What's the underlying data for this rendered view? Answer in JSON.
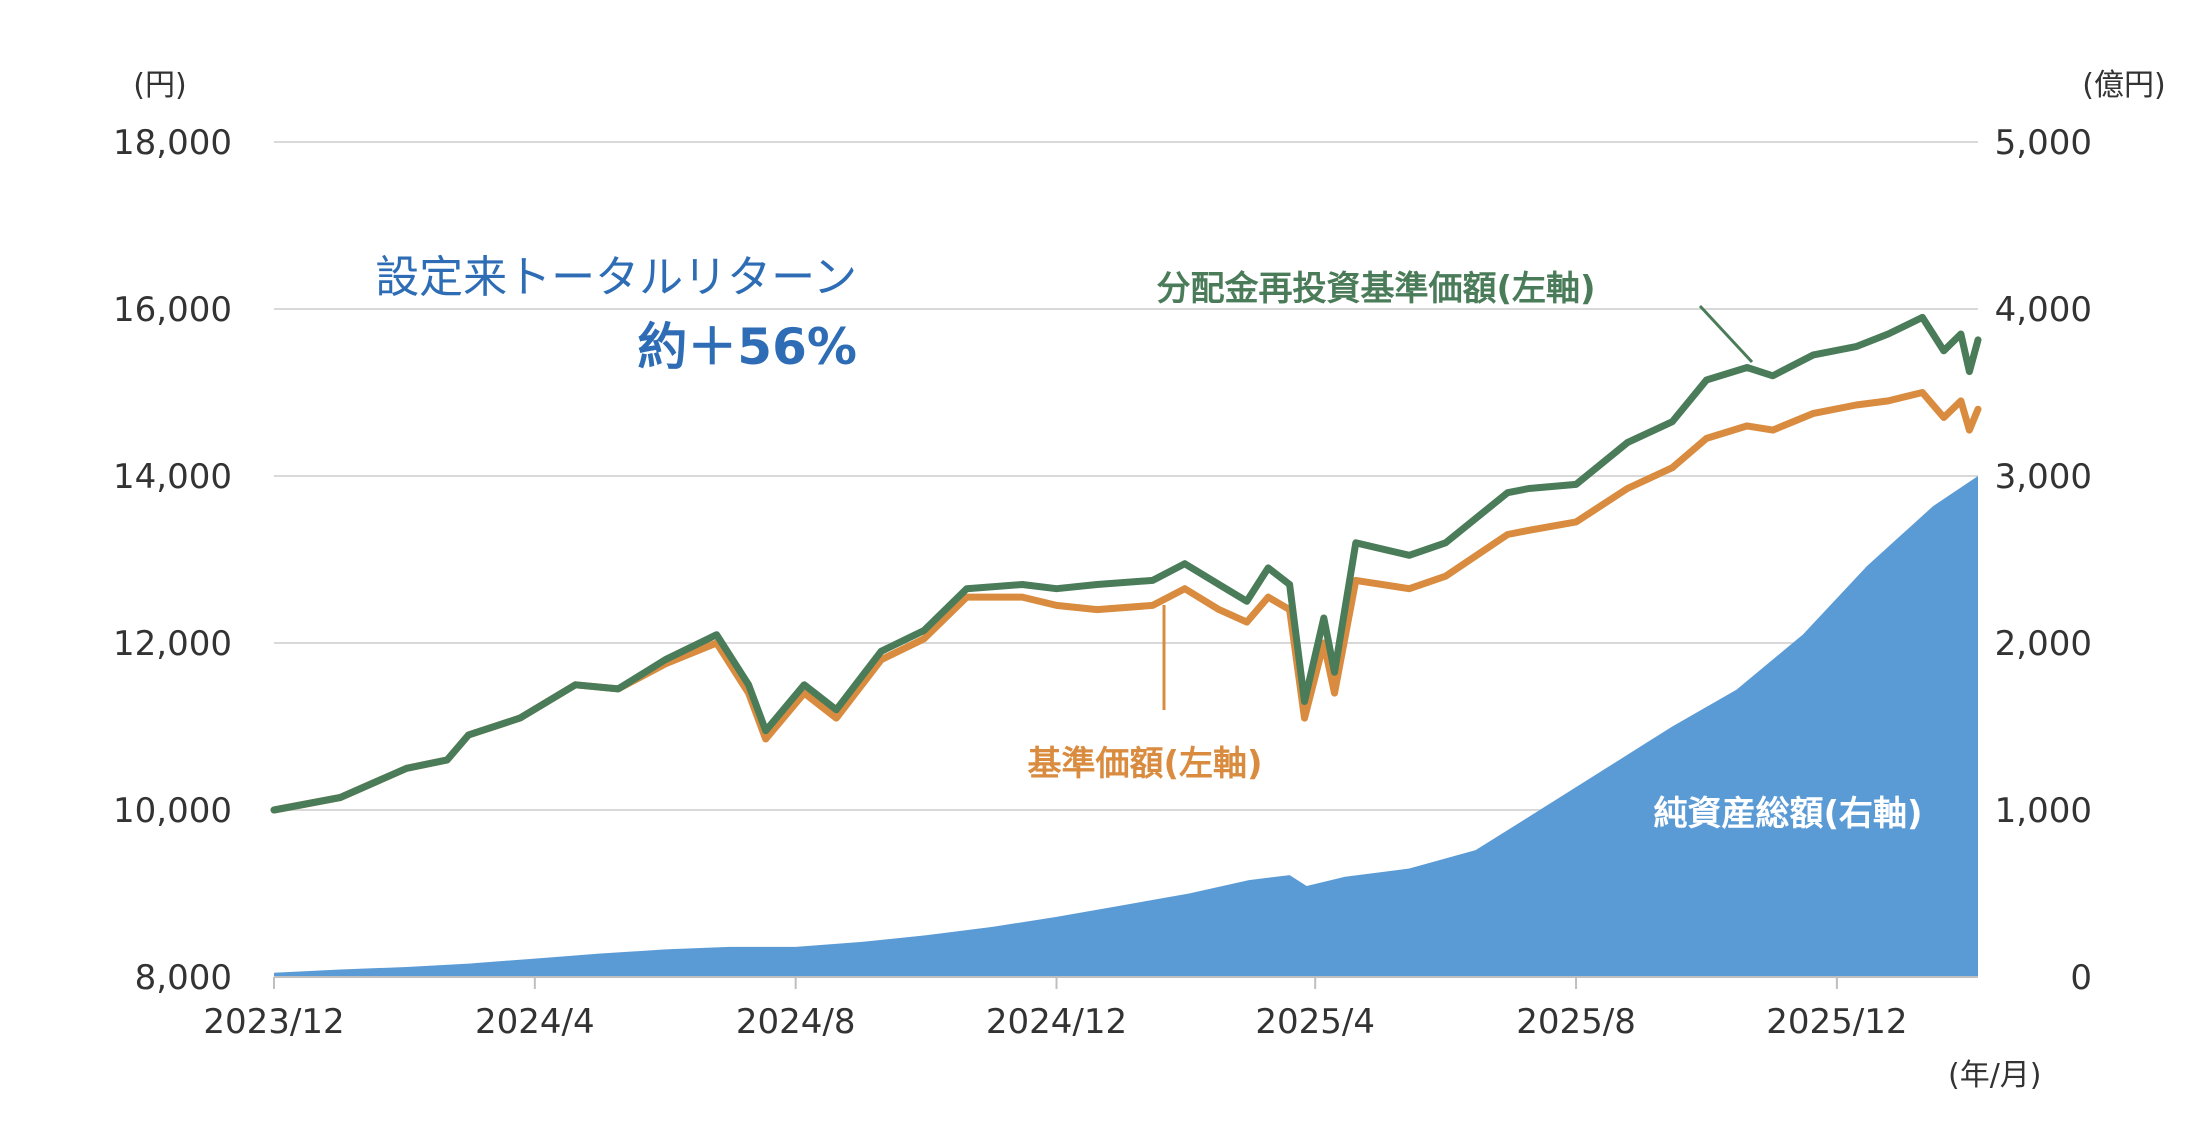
{
  "chart_data": {
    "type": "line",
    "x_unit_label": "(年/月)",
    "x_ticks": [
      "2023/12",
      "2024/4",
      "2024/8",
      "2024/12",
      "2025/4",
      "2025/8",
      "2025/12"
    ],
    "y_left": {
      "unit_label": "(円)",
      "ticks": [
        "8,000",
        "10,000",
        "12,000",
        "14,000",
        "16,000",
        "18,000"
      ],
      "range": [
        8000,
        18000
      ]
    },
    "y_right": {
      "unit_label": "(億円)",
      "ticks": [
        "0",
        "1,000",
        "2,000",
        "3,000",
        "4,000",
        "5,000"
      ],
      "range": [
        0,
        5000
      ]
    },
    "grid": true,
    "annotation": {
      "line1": "設定来トータルリターン",
      "line2": "約＋56%"
    },
    "series": [
      {
        "name": "純資産総額(右軸)",
        "kind": "area",
        "axis": "right",
        "color": "#5b9bd5",
        "points": [
          [
            "2023-12-01",
            25
          ],
          [
            "2024-01-01",
            45
          ],
          [
            "2024-02-01",
            60
          ],
          [
            "2024-03-01",
            80
          ],
          [
            "2024-04-01",
            110
          ],
          [
            "2024-05-01",
            140
          ],
          [
            "2024-06-01",
            165
          ],
          [
            "2024-07-01",
            180
          ],
          [
            "2024-08-01",
            180
          ],
          [
            "2024-09-01",
            210
          ],
          [
            "2024-10-01",
            250
          ],
          [
            "2024-11-01",
            300
          ],
          [
            "2024-12-01",
            360
          ],
          [
            "2025-01-01",
            430
          ],
          [
            "2025-02-01",
            500
          ],
          [
            "2025-03-01",
            580
          ],
          [
            "2025-03-20",
            610
          ],
          [
            "2025-03-28",
            545
          ],
          [
            "2025-04-15",
            600
          ],
          [
            "2025-05-15",
            650
          ],
          [
            "2025-06-15",
            760
          ],
          [
            "2025-07-15",
            1000
          ],
          [
            "2025-08-15",
            1250
          ],
          [
            "2025-09-15",
            1500
          ],
          [
            "2025-10-15",
            1720
          ],
          [
            "2025-11-15",
            2050
          ],
          [
            "2025-12-15",
            2460
          ],
          [
            "2026-01-15",
            2820
          ],
          [
            "2026-02-05",
            3000
          ]
        ]
      },
      {
        "name": "分配金再投資基準価額(左軸)",
        "kind": "line",
        "axis": "left",
        "color": "#4a7c59",
        "points": [
          [
            "2023-12-01",
            10000
          ],
          [
            "2024-01-01",
            10150
          ],
          [
            "2024-02-01",
            10500
          ],
          [
            "2024-02-20",
            10600
          ],
          [
            "2024-03-01",
            10900
          ],
          [
            "2024-03-25",
            11100
          ],
          [
            "2024-04-20",
            11500
          ],
          [
            "2024-05-10",
            11450
          ],
          [
            "2024-06-01",
            11800
          ],
          [
            "2024-06-25",
            12100
          ],
          [
            "2024-07-10",
            11500
          ],
          [
            "2024-07-18",
            10950
          ],
          [
            "2024-08-05",
            11500
          ],
          [
            "2024-08-20",
            11200
          ],
          [
            "2024-09-10",
            11900
          ],
          [
            "2024-09-30",
            12150
          ],
          [
            "2024-10-20",
            12650
          ],
          [
            "2024-11-15",
            12700
          ],
          [
            "2024-12-01",
            12650
          ],
          [
            "2024-12-20",
            12700
          ],
          [
            "2025-01-15",
            12750
          ],
          [
            "2025-01-30",
            12950
          ],
          [
            "2025-02-15",
            12700
          ],
          [
            "2025-02-28",
            12500
          ],
          [
            "2025-03-10",
            12900
          ],
          [
            "2025-03-20",
            12700
          ],
          [
            "2025-03-27",
            11300
          ],
          [
            "2025-04-05",
            12300
          ],
          [
            "2025-04-10",
            11650
          ],
          [
            "2025-04-20",
            13200
          ],
          [
            "2025-05-15",
            13050
          ],
          [
            "2025-06-01",
            13200
          ],
          [
            "2025-06-30",
            13800
          ],
          [
            "2025-07-10",
            13850
          ],
          [
            "2025-08-01",
            13900
          ],
          [
            "2025-08-25",
            14400
          ],
          [
            "2025-09-15",
            14650
          ],
          [
            "2025-10-01",
            15150
          ],
          [
            "2025-10-20",
            15300
          ],
          [
            "2025-11-01",
            15200
          ],
          [
            "2025-11-20",
            15450
          ],
          [
            "2025-12-10",
            15550
          ],
          [
            "2025-12-25",
            15700
          ],
          [
            "2026-01-10",
            15900
          ],
          [
            "2026-01-20",
            15500
          ],
          [
            "2026-01-28",
            15700
          ],
          [
            "2026-02-01",
            15250
          ],
          [
            "2026-02-05",
            15630
          ]
        ]
      },
      {
        "name": "基準価額(左軸)",
        "kind": "line",
        "axis": "left",
        "color": "#d98c3f",
        "points": [
          [
            "2023-12-01",
            10000
          ],
          [
            "2024-01-01",
            10150
          ],
          [
            "2024-02-01",
            10500
          ],
          [
            "2024-02-20",
            10600
          ],
          [
            "2024-03-01",
            10900
          ],
          [
            "2024-03-25",
            11100
          ],
          [
            "2024-04-20",
            11500
          ],
          [
            "2024-05-10",
            11450
          ],
          [
            "2024-06-01",
            11750
          ],
          [
            "2024-06-25",
            12000
          ],
          [
            "2024-07-10",
            11400
          ],
          [
            "2024-07-18",
            10850
          ],
          [
            "2024-08-05",
            11400
          ],
          [
            "2024-08-20",
            11100
          ],
          [
            "2024-09-10",
            11800
          ],
          [
            "2024-09-30",
            12050
          ],
          [
            "2024-10-20",
            12550
          ],
          [
            "2024-11-15",
            12550
          ],
          [
            "2024-12-01",
            12450
          ],
          [
            "2024-12-20",
            12400
          ],
          [
            "2025-01-15",
            12450
          ],
          [
            "2025-01-30",
            12650
          ],
          [
            "2025-02-15",
            12400
          ],
          [
            "2025-02-28",
            12250
          ],
          [
            "2025-03-10",
            12550
          ],
          [
            "2025-03-20",
            12400
          ],
          [
            "2025-03-27",
            11100
          ],
          [
            "2025-04-05",
            12000
          ],
          [
            "2025-04-10",
            11400
          ],
          [
            "2025-04-20",
            12750
          ],
          [
            "2025-05-15",
            12650
          ],
          [
            "2025-06-01",
            12800
          ],
          [
            "2025-06-30",
            13300
          ],
          [
            "2025-07-10",
            13350
          ],
          [
            "2025-08-01",
            13450
          ],
          [
            "2025-08-25",
            13850
          ],
          [
            "2025-09-15",
            14100
          ],
          [
            "2025-10-01",
            14450
          ],
          [
            "2025-10-20",
            14600
          ],
          [
            "2025-11-01",
            14550
          ],
          [
            "2025-11-20",
            14750
          ],
          [
            "2025-12-10",
            14850
          ],
          [
            "2025-12-25",
            14900
          ],
          [
            "2026-01-10",
            15000
          ],
          [
            "2026-01-20",
            14700
          ],
          [
            "2026-01-28",
            14900
          ],
          [
            "2026-02-01",
            14550
          ],
          [
            "2026-02-05",
            14800
          ]
        ]
      }
    ]
  }
}
